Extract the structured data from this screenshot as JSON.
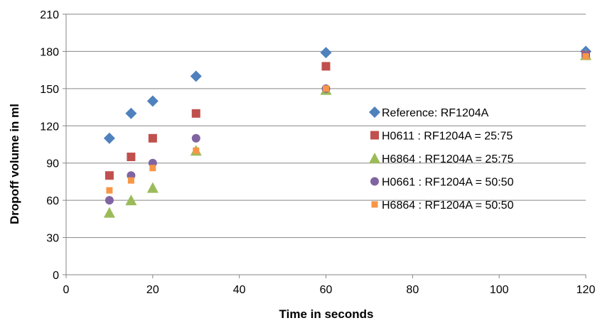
{
  "chart_data": {
    "type": "scatter",
    "title": "",
    "xlabel": "Time in seconds",
    "ylabel": "Dropoff volume in ml",
    "xlim": [
      0,
      120
    ],
    "ylim": [
      0,
      210
    ],
    "x_ticks": [
      0,
      20,
      40,
      60,
      80,
      100,
      120
    ],
    "y_ticks": [
      0,
      30,
      60,
      90,
      120,
      150,
      180,
      210
    ],
    "grid": "horizontal",
    "legend_position": "right",
    "series": [
      {
        "name": "Reference: RF1204A",
        "marker": "diamond",
        "color": "#4f81bd",
        "points": [
          [
            10,
            110
          ],
          [
            15,
            130
          ],
          [
            20,
            140
          ],
          [
            30,
            160
          ],
          [
            60,
            179
          ],
          [
            120,
            180
          ]
        ]
      },
      {
        "name": "H0611 : RF1204A = 25:75",
        "marker": "square",
        "color": "#c0504d",
        "points": [
          [
            10,
            80
          ],
          [
            15,
            95
          ],
          [
            20,
            110
          ],
          [
            30,
            130
          ],
          [
            60,
            168
          ],
          [
            120,
            177
          ]
        ]
      },
      {
        "name": "H6864 : RF1204A = 25:75",
        "marker": "triangle",
        "color": "#9bbb59",
        "points": [
          [
            10,
            50
          ],
          [
            15,
            60
          ],
          [
            20,
            70
          ],
          [
            30,
            100
          ],
          [
            60,
            149
          ],
          [
            120,
            177
          ]
        ]
      },
      {
        "name": "H0661 : RF1204A = 50:50",
        "marker": "circle",
        "color": "#8064a2",
        "points": [
          [
            10,
            60
          ],
          [
            15,
            80
          ],
          [
            20,
            90
          ],
          [
            30,
            110
          ],
          [
            60,
            150
          ],
          [
            120,
            177
          ]
        ]
      },
      {
        "name": "H6864 : RF1204A = 50:50",
        "marker": "small-square",
        "color": "#f79646",
        "points": [
          [
            10,
            68
          ],
          [
            15,
            76
          ],
          [
            20,
            86
          ],
          [
            30,
            100
          ],
          [
            60,
            150
          ],
          [
            120,
            176
          ]
        ]
      }
    ]
  }
}
